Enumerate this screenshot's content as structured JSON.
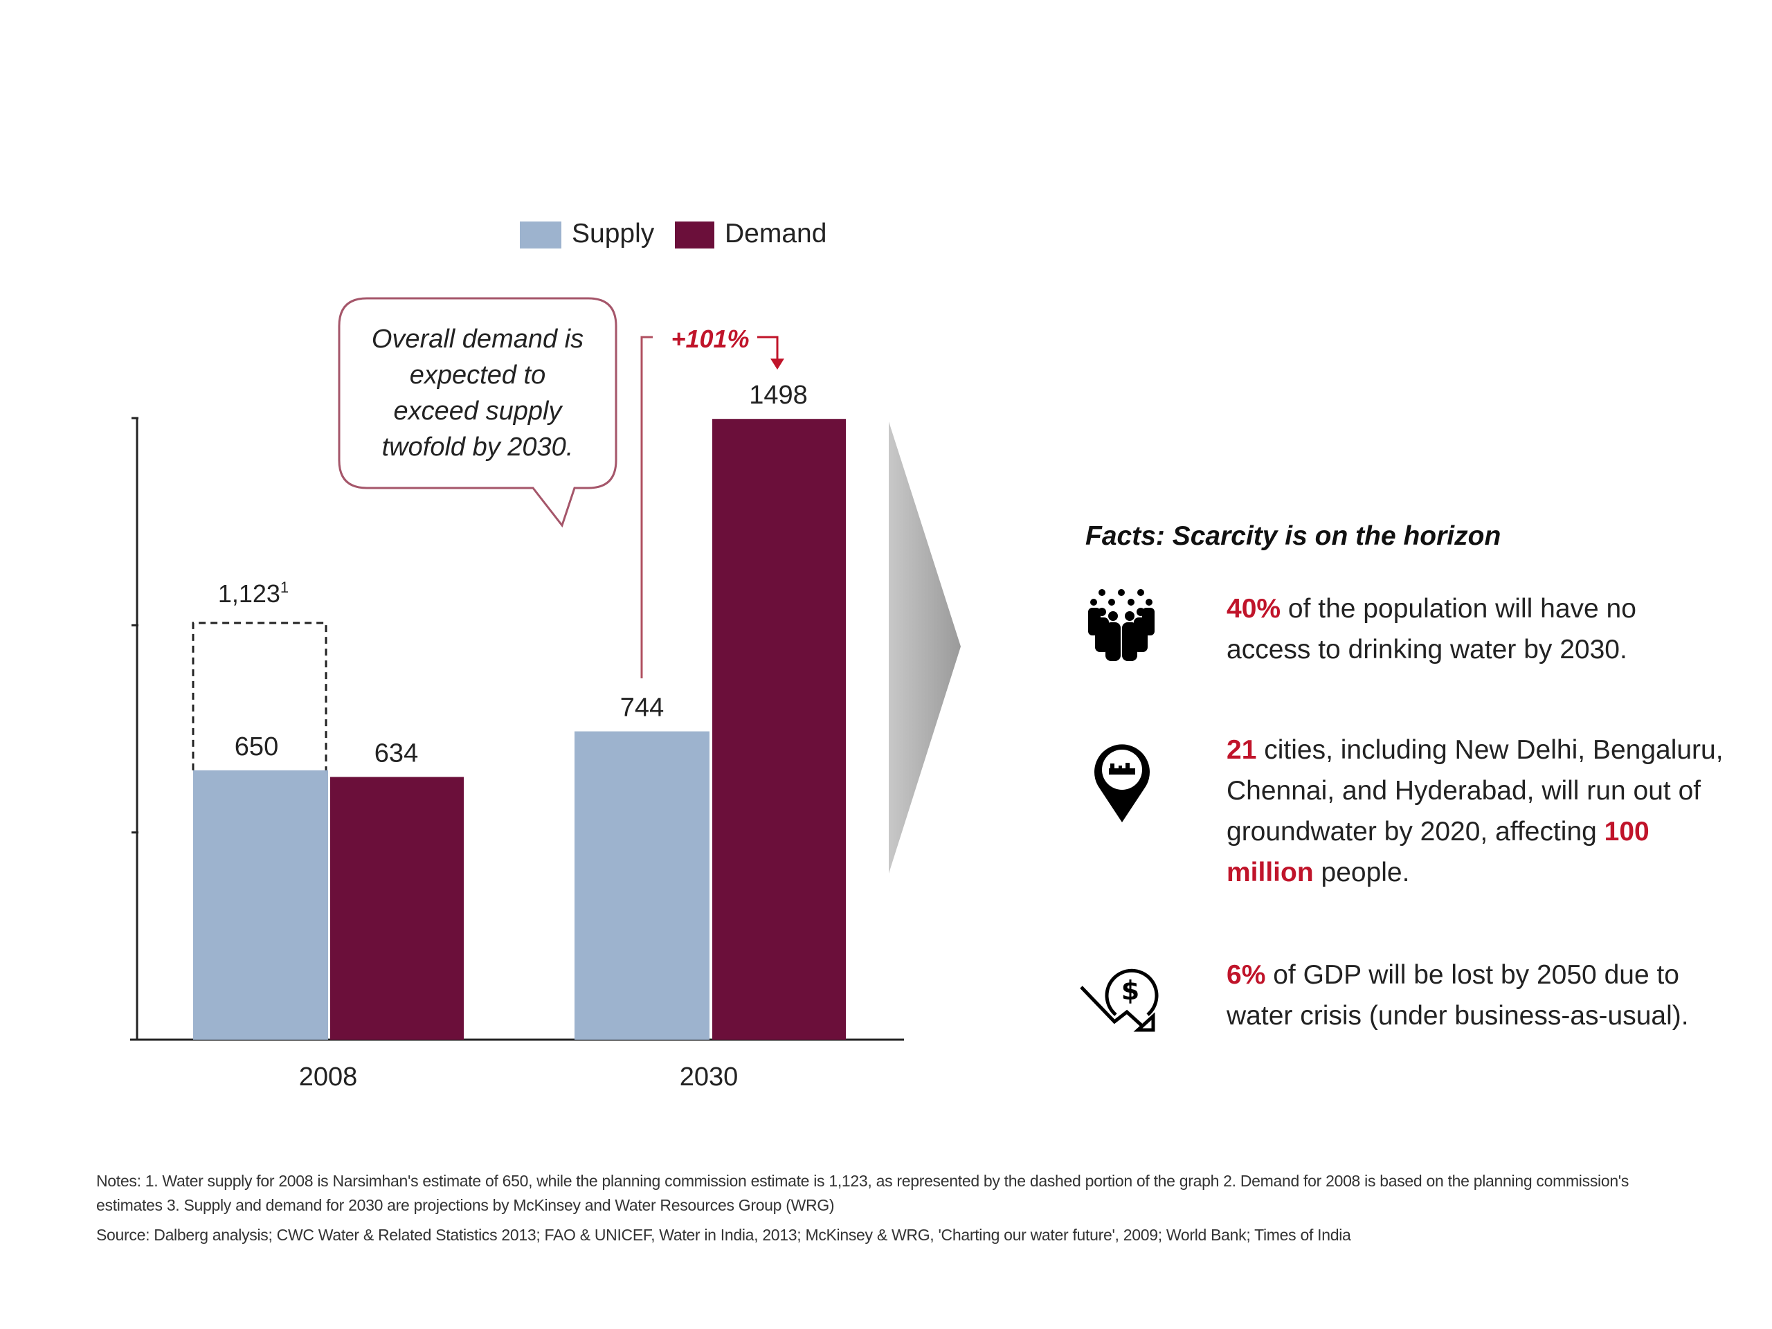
{
  "colors": {
    "supply": "#9db3ce",
    "demand": "#6b0f3a",
    "highlight": "#c0142a",
    "arrow": "#a8a8a8"
  },
  "chart_data": {
    "type": "bar",
    "categories": [
      "2008",
      "2030"
    ],
    "series": [
      {
        "name": "Supply",
        "values": [
          650,
          744
        ]
      },
      {
        "name": "Demand",
        "values": [
          634,
          1498
        ]
      }
    ],
    "data_labels": {
      "supply": [
        "650",
        "744"
      ],
      "demand": [
        "634",
        "1498"
      ]
    },
    "alternate_estimate": {
      "category": "2008",
      "value": 1123,
      "label": "1,123",
      "footnote": "1",
      "style": "dashed"
    },
    "growth_annotation": "+101%",
    "callout": [
      "Overall demand is",
      "expected to",
      "exceed supply",
      "twofold by 2030."
    ],
    "ylim": [
      0,
      1500
    ],
    "yticks": [
      0,
      500,
      1000,
      1500
    ],
    "ytick_labels_shown": false,
    "grid": false,
    "legend": "top",
    "xlabel": "",
    "ylabel": ""
  },
  "facts": {
    "title": "Facts: Scarcity is on the horizon",
    "items": [
      {
        "icon": "people-crowd-icon",
        "parts": [
          {
            "t": "40%",
            "hl": true
          },
          {
            "t": " of the population will have no access to drinking water by 2030.",
            "hl": false
          }
        ]
      },
      {
        "icon": "city-location-pin-icon",
        "parts": [
          {
            "t": "21",
            "hl": true
          },
          {
            "t": " cities, including New Delhi, Bengaluru, Chennai, and Hyderabad, will run out of groundwater by 2020, affecting ",
            "hl": false
          },
          {
            "t": "100 million",
            "hl": true
          },
          {
            "t": "  people.",
            "hl": false
          }
        ]
      },
      {
        "icon": "dollar-decline-icon",
        "parts": [
          {
            "t": "6%",
            "hl": true
          },
          {
            "t": " of GDP will be lost by 2050 due to water crisis (under business-as-usual).",
            "hl": false
          }
        ]
      }
    ]
  },
  "notes": {
    "notes": "Notes: 1. Water supply for 2008 is Narsimhan's estimate of 650, while the planning commission estimate is 1,123, as represented by the dashed portion of the graph 2. Demand for 2008 is based on the planning commission's estimates 3. Supply and demand for 2030 are projections by McKinsey and Water Resources Group (WRG)",
    "source": "Source: Dalberg analysis; CWC Water & Related Statistics 2013; FAO & UNICEF, Water in India, 2013; McKinsey & WRG, 'Charting our water future', 2009; World Bank; Times of India"
  }
}
